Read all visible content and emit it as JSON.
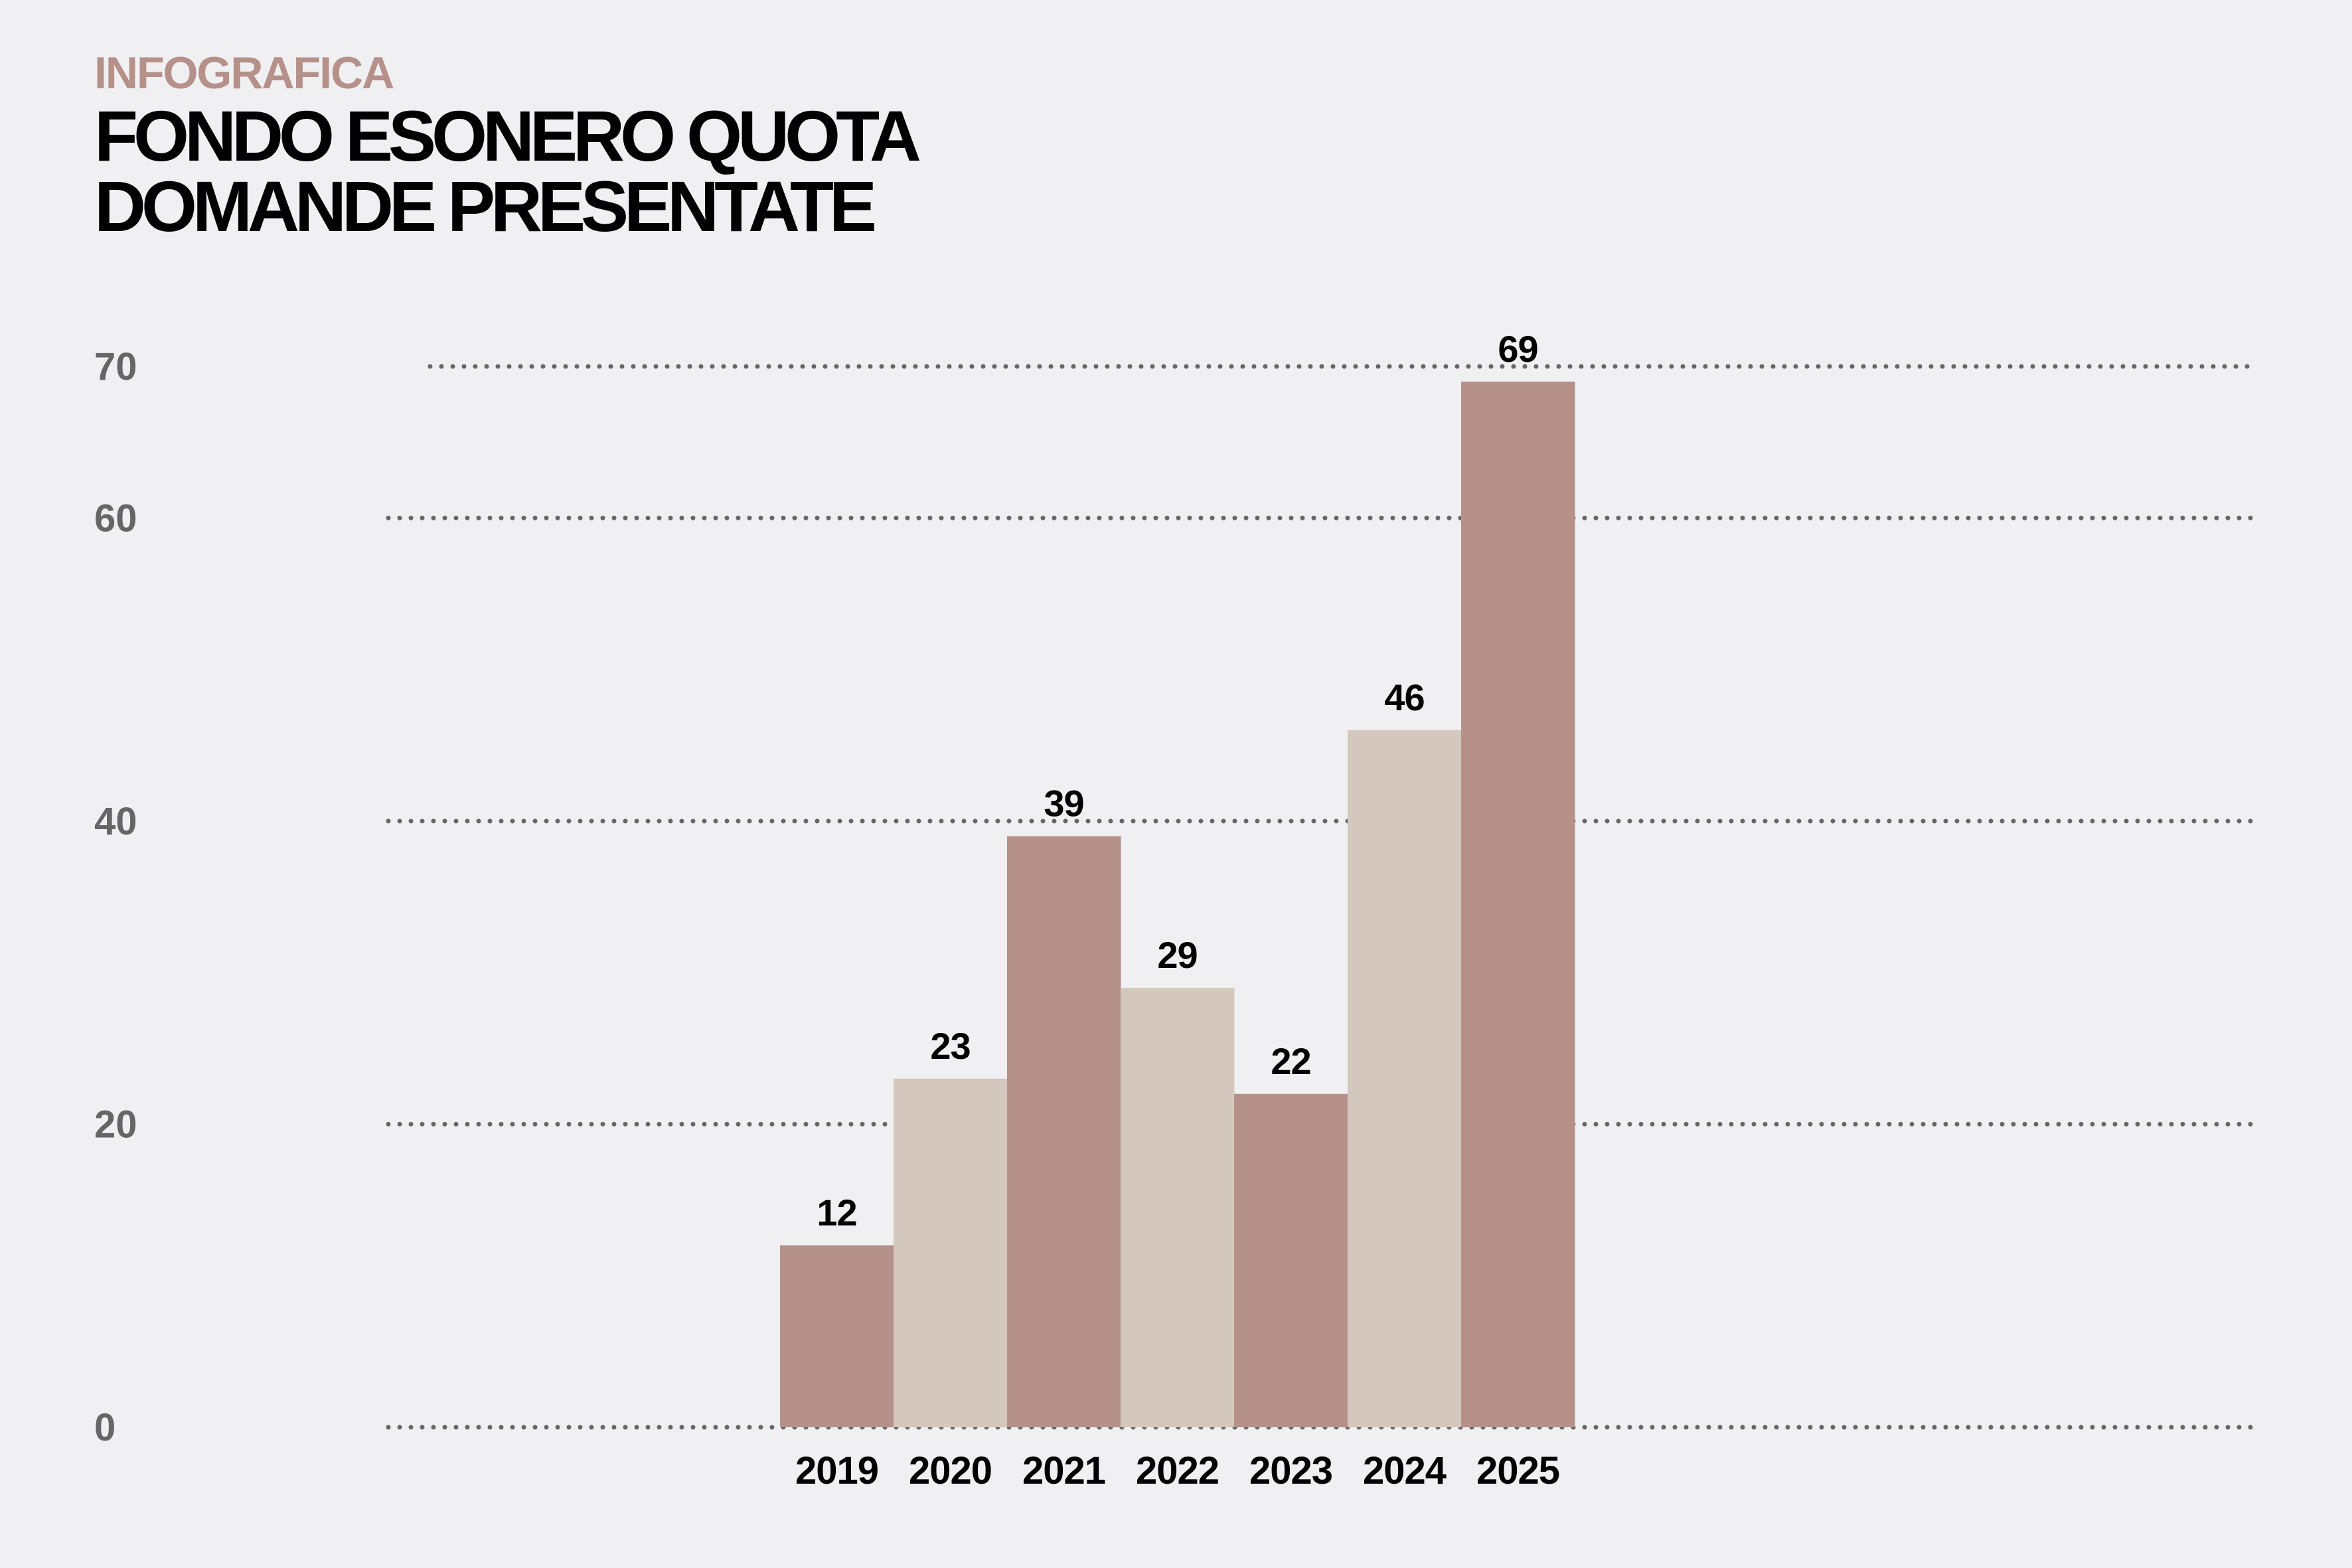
{
  "header": {
    "kicker": "INFOGRAFICA",
    "title_line1": "FONDO ESONERO QUOTA",
    "title_line2": "DOMANDE PRESENTATE"
  },
  "colors": {
    "background": "#f0eff1",
    "kicker": "#b5918a",
    "bar_dark": "#b5918a",
    "bar_light": "#d4c7bd",
    "grid": "#666666",
    "tick_label": "#666666",
    "label": "#000000"
  },
  "chart_data": {
    "type": "bar",
    "title": "FONDO ESONERO QUOTA DOMANDE PRESENTATE",
    "categories": [
      "2019",
      "2020",
      "2021",
      "2022",
      "2023",
      "2024",
      "2025"
    ],
    "values": [
      12,
      23,
      39,
      29,
      22,
      46,
      69
    ],
    "bar_shades": [
      "dark",
      "light",
      "dark",
      "light",
      "dark",
      "light",
      "dark"
    ],
    "y_ticks": [
      0,
      20,
      40,
      60,
      70
    ],
    "ylim": [
      0,
      70
    ],
    "grid": "dotted horizontal lines at y ticks",
    "legend": "none",
    "xlabel": "",
    "ylabel": ""
  }
}
